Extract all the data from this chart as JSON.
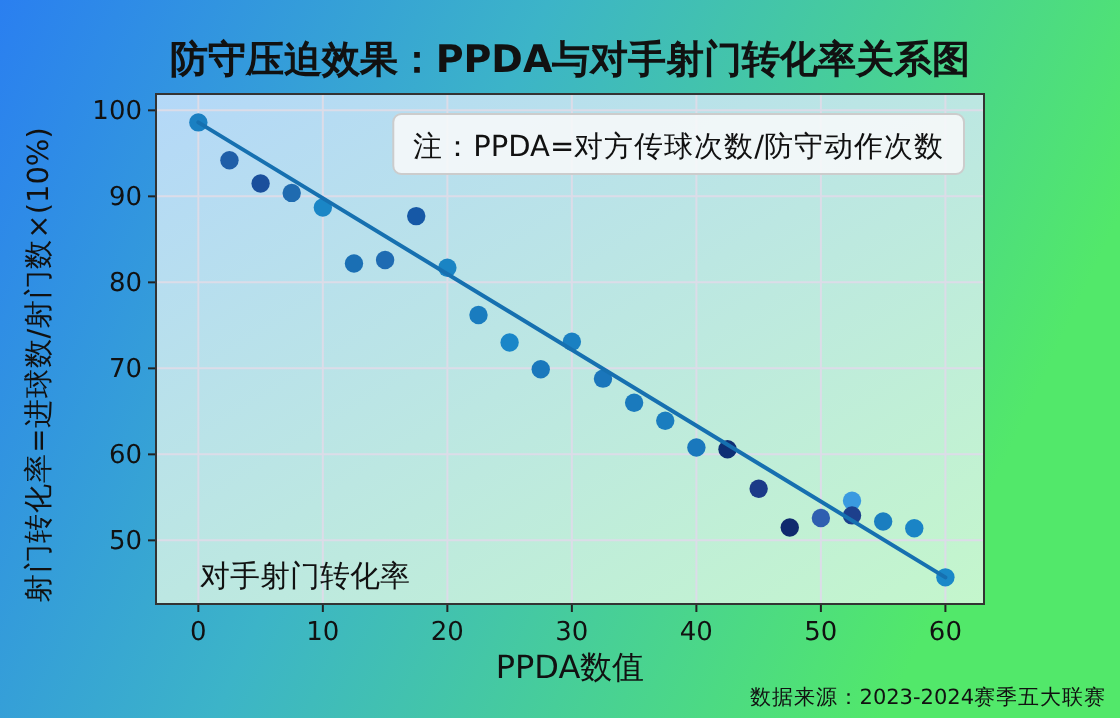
{
  "chart_data": {
    "type": "scatter",
    "title": "防守压迫效果：PPDA与对手射门转化率关系图",
    "xlabel": "PPDA数值",
    "ylabel": "射门转化率=进球数/射门数×(10%)",
    "xlim": [
      -3.4,
      63.1
    ],
    "ylim": [
      42.6,
      101.9
    ],
    "xticks": [
      0,
      10,
      20,
      30,
      40,
      50,
      60
    ],
    "yticks": [
      50,
      60,
      70,
      80,
      90,
      100
    ],
    "grid": true,
    "annotations": [
      "注：PPDA=对方传球次数/防守动作次数",
      "对手射门转化率",
      "数据来源：2023-2024赛季五大联赛"
    ],
    "series": [
      {
        "marker": "circle",
        "x": [
          0,
          2.5,
          5,
          7.5,
          10,
          12.5,
          15,
          17.5,
          20,
          22.5,
          25,
          27.5,
          30,
          32.5,
          35,
          37.5,
          40,
          42.5,
          45,
          47.5,
          50,
          52.5,
          52.5,
          55,
          57.5,
          60
        ],
        "values": [
          98.6,
          94.2,
          91.5,
          90.4,
          88.7,
          82.2,
          82.6,
          87.7,
          81.7,
          76.2,
          73.0,
          69.9,
          73.1,
          68.8,
          66.0,
          63.9,
          60.8,
          60.6,
          56.0,
          51.5,
          52.6,
          54.6,
          52.9,
          52.2,
          51.4,
          45.7
        ],
        "colors": [
          "#1a80c2",
          "#1f5ea8",
          "#1a4f9c",
          "#1f6bb0",
          "#1a86c6",
          "#1a6fb4",
          "#1f6bb2",
          "#1658a6",
          "#1a84c4",
          "#1a7cbf",
          "#1a86c8",
          "#1a78bc",
          "#1a80c2",
          "#1a76bb",
          "#1a7abd",
          "#1a7dbf",
          "#1a78bd",
          "#0e2f74",
          "#1c3a88",
          "#102a6e",
          "#2f5fb0",
          "#3a9ae0",
          "#1d3f8c",
          "#1a7ec0",
          "#1a84c6",
          "#1a88c8"
        ]
      },
      {
        "type": "line",
        "x": [
          0,
          60
        ],
        "values": [
          98.6,
          45.7
        ],
        "color": "#1670b0",
        "line_style": "solid"
      }
    ]
  }
}
